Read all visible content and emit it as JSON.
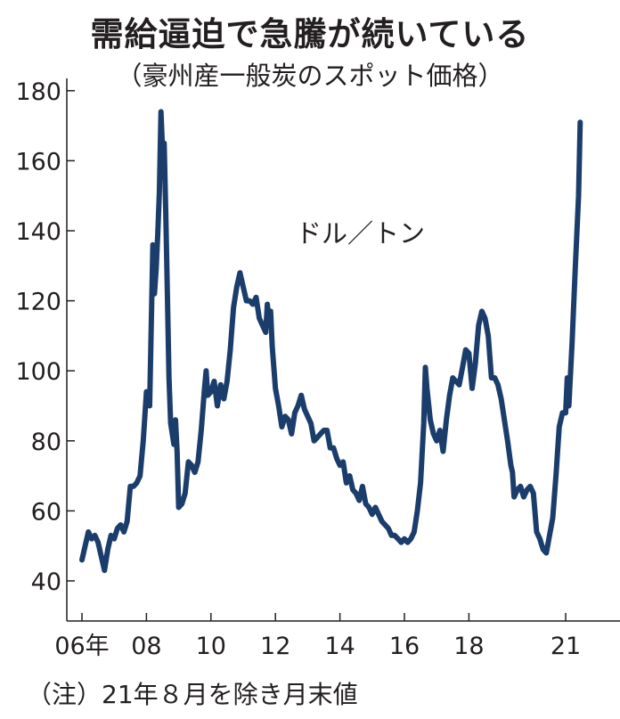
{
  "header": {
    "title": "需給逼迫で急騰が続いている",
    "subtitle": "（豪州産一般炭のスポット価格）"
  },
  "footnote": "（注）21年８月を除き月末値",
  "chart_data": {
    "type": "line",
    "title": "需給逼迫で急騰が続いている",
    "subtitle": "（豪州産一般炭のスポット価格）",
    "unit_label": "ドル／トン",
    "xlabel": "",
    "ylabel": "",
    "x_ticks": [
      {
        "year": 2006,
        "label": "06年"
      },
      {
        "year": 2008,
        "label": "08"
      },
      {
        "year": 2010,
        "label": "10"
      },
      {
        "year": 2012,
        "label": "12"
      },
      {
        "year": 2014,
        "label": "14"
      },
      {
        "year": 2016,
        "label": "16"
      },
      {
        "year": 2018,
        "label": "18"
      },
      {
        "year": 2021,
        "label": "21"
      }
    ],
    "y_ticks": [
      40,
      60,
      80,
      100,
      120,
      140,
      160,
      180
    ],
    "xlim": [
      2005.9,
      2021.9
    ],
    "ylim": [
      30,
      185
    ],
    "series_color": "#1b3d6b",
    "grid": false,
    "series": [
      {
        "name": "",
        "points": [
          [
            2006.0,
            46
          ],
          [
            2006.1,
            50
          ],
          [
            2006.2,
            54
          ],
          [
            2006.3,
            52
          ],
          [
            2006.4,
            53
          ],
          [
            2006.5,
            51
          ],
          [
            2006.6,
            47
          ],
          [
            2006.7,
            43
          ],
          [
            2006.8,
            49
          ],
          [
            2006.9,
            53
          ],
          [
            2007.0,
            52
          ],
          [
            2007.1,
            55
          ],
          [
            2007.2,
            56
          ],
          [
            2007.3,
            54
          ],
          [
            2007.4,
            57
          ],
          [
            2007.5,
            67
          ],
          [
            2007.6,
            67
          ],
          [
            2007.7,
            68
          ],
          [
            2007.8,
            70
          ],
          [
            2007.9,
            80
          ],
          [
            2008.0,
            94
          ],
          [
            2008.1,
            90
          ],
          [
            2008.2,
            136
          ],
          [
            2008.25,
            122
          ],
          [
            2008.3,
            129
          ],
          [
            2008.35,
            139
          ],
          [
            2008.4,
            151
          ],
          [
            2008.45,
            174
          ],
          [
            2008.5,
            163
          ],
          [
            2008.55,
            165
          ],
          [
            2008.6,
            145
          ],
          [
            2008.65,
            122
          ],
          [
            2008.7,
            98
          ],
          [
            2008.75,
            85
          ],
          [
            2008.8,
            82
          ],
          [
            2008.85,
            79
          ],
          [
            2008.9,
            86
          ],
          [
            2008.95,
            77
          ],
          [
            2009.0,
            61
          ],
          [
            2009.1,
            62
          ],
          [
            2009.2,
            65
          ],
          [
            2009.3,
            74
          ],
          [
            2009.4,
            73
          ],
          [
            2009.5,
            71
          ],
          [
            2009.6,
            74
          ],
          [
            2009.7,
            83
          ],
          [
            2009.8,
            95
          ],
          [
            2009.85,
            100
          ],
          [
            2009.9,
            93
          ],
          [
            2010.0,
            94
          ],
          [
            2010.1,
            97
          ],
          [
            2010.2,
            90
          ],
          [
            2010.3,
            96
          ],
          [
            2010.4,
            92
          ],
          [
            2010.5,
            97
          ],
          [
            2010.6,
            106
          ],
          [
            2010.7,
            118
          ],
          [
            2010.8,
            124
          ],
          [
            2010.9,
            128
          ],
          [
            2011.0,
            124
          ],
          [
            2011.1,
            120
          ],
          [
            2011.2,
            120
          ],
          [
            2011.3,
            119
          ],
          [
            2011.4,
            121
          ],
          [
            2011.5,
            115
          ],
          [
            2011.6,
            113
          ],
          [
            2011.7,
            111
          ],
          [
            2011.75,
            119
          ],
          [
            2011.8,
            114
          ],
          [
            2011.85,
            117
          ],
          [
            2011.9,
            107
          ],
          [
            2012.0,
            95
          ],
          [
            2012.1,
            90
          ],
          [
            2012.2,
            84
          ],
          [
            2012.3,
            87
          ],
          [
            2012.4,
            86
          ],
          [
            2012.5,
            82
          ],
          [
            2012.6,
            88
          ],
          [
            2012.7,
            90
          ],
          [
            2012.8,
            93
          ],
          [
            2012.9,
            89
          ],
          [
            2013.0,
            87
          ],
          [
            2013.1,
            85
          ],
          [
            2013.2,
            80
          ],
          [
            2013.3,
            81
          ],
          [
            2013.4,
            82
          ],
          [
            2013.5,
            83
          ],
          [
            2013.6,
            83
          ],
          [
            2013.7,
            78
          ],
          [
            2013.8,
            78
          ],
          [
            2013.9,
            75
          ],
          [
            2014.0,
            73
          ],
          [
            2014.1,
            74
          ],
          [
            2014.2,
            68
          ],
          [
            2014.3,
            70
          ],
          [
            2014.4,
            66
          ],
          [
            2014.5,
            65
          ],
          [
            2014.6,
            63
          ],
          [
            2014.7,
            67
          ],
          [
            2014.8,
            62
          ],
          [
            2014.9,
            61
          ],
          [
            2015.0,
            59
          ],
          [
            2015.1,
            61
          ],
          [
            2015.2,
            59
          ],
          [
            2015.3,
            57
          ],
          [
            2015.4,
            56
          ],
          [
            2015.5,
            55
          ],
          [
            2015.6,
            53
          ],
          [
            2015.7,
            53
          ],
          [
            2015.8,
            52
          ],
          [
            2015.9,
            51
          ],
          [
            2016.0,
            52
          ],
          [
            2016.1,
            51
          ],
          [
            2016.2,
            52
          ],
          [
            2016.3,
            54
          ],
          [
            2016.4,
            60
          ],
          [
            2016.5,
            68
          ],
          [
            2016.6,
            85
          ],
          [
            2016.65,
            101
          ],
          [
            2016.7,
            95
          ],
          [
            2016.8,
            86
          ],
          [
            2016.9,
            82
          ],
          [
            2017.0,
            80
          ],
          [
            2017.1,
            83
          ],
          [
            2017.2,
            77
          ],
          [
            2017.3,
            86
          ],
          [
            2017.4,
            93
          ],
          [
            2017.5,
            98
          ],
          [
            2017.6,
            97
          ],
          [
            2017.7,
            96
          ],
          [
            2017.8,
            101
          ],
          [
            2017.9,
            106
          ],
          [
            2018.0,
            105
          ],
          [
            2018.1,
            95
          ],
          [
            2018.2,
            102
          ],
          [
            2018.3,
            113
          ],
          [
            2018.4,
            117
          ],
          [
            2018.5,
            115
          ],
          [
            2018.6,
            110
          ],
          [
            2018.7,
            98
          ],
          [
            2018.8,
            98
          ],
          [
            2018.9,
            96
          ],
          [
            2019.0,
            92
          ],
          [
            2019.1,
            86
          ],
          [
            2019.2,
            80
          ],
          [
            2019.3,
            73
          ],
          [
            2019.35,
            71
          ],
          [
            2019.4,
            64
          ],
          [
            2019.5,
            66
          ],
          [
            2019.6,
            67
          ],
          [
            2019.7,
            64
          ],
          [
            2019.8,
            66
          ],
          [
            2019.9,
            67
          ],
          [
            2020.0,
            65
          ],
          [
            2020.1,
            54
          ],
          [
            2020.2,
            52
          ],
          [
            2020.3,
            49
          ],
          [
            2020.4,
            48
          ],
          [
            2020.5,
            53
          ],
          [
            2020.6,
            58
          ],
          [
            2020.7,
            70
          ],
          [
            2020.8,
            84
          ],
          [
            2020.9,
            88
          ],
          [
            2021.0,
            88
          ],
          [
            2021.05,
            98
          ],
          [
            2021.1,
            90
          ],
          [
            2021.2,
            108
          ],
          [
            2021.3,
            130
          ],
          [
            2021.4,
            150
          ],
          [
            2021.45,
            171
          ]
        ]
      }
    ]
  }
}
